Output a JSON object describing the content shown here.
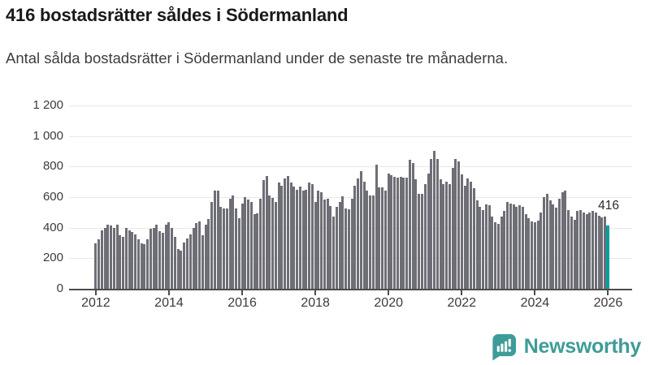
{
  "header": {
    "title": "416 bostadsrätter såldes i Södermanland",
    "subtitle": "Antal sålda bostadsrätter i Södermanland under de senaste tre månaderna."
  },
  "chart_data": {
    "type": "bar",
    "title": "416 bostadsrätter såldes i Södermanland",
    "xlabel": "",
    "ylabel": "",
    "x_start": "2012-01",
    "x_end": "2026-01",
    "x_frequency": "monthly",
    "ylim": [
      0,
      1200
    ],
    "grid": "horizontal",
    "legend": "none",
    "bar_color": "#6e6e76",
    "yticks": [
      {
        "value": 0,
        "label": "0"
      },
      {
        "value": 200,
        "label": "200"
      },
      {
        "value": 400,
        "label": "400"
      },
      {
        "value": 600,
        "label": "600"
      },
      {
        "value": 800,
        "label": "800"
      },
      {
        "value": 1000,
        "label": "1 000"
      },
      {
        "value": 1200,
        "label": "1 200"
      }
    ],
    "xticks": [
      2012,
      2014,
      2016,
      2018,
      2020,
      2022,
      2024,
      2026
    ],
    "x_start_year": 2012,
    "series": [
      {
        "name": "Antal sålda bostadsrätter",
        "values": [
          297,
          322,
          380,
          397,
          418,
          415,
          400,
          418,
          350,
          338,
          400,
          380,
          370,
          355,
          322,
          297,
          294,
          322,
          392,
          400,
          421,
          375,
          367,
          418,
          435,
          397,
          338,
          262,
          250,
          302,
          330,
          358,
          400,
          430,
          440,
          349,
          418,
          457,
          568,
          645,
          640,
          539,
          524,
          528,
          587,
          613,
          524,
          462,
          555,
          602,
          585,
          567,
          489,
          495,
          592,
          710,
          737,
          613,
          593,
          567,
          694,
          674,
          720,
          737,
          694,
          667,
          648,
          667,
          640,
          648,
          694,
          684,
          570,
          645,
          630,
          585,
          590,
          543,
          472,
          535,
          568,
          603,
          528,
          520,
          590,
          675,
          720,
          770,
          700,
          640,
          610,
          610,
          815,
          665,
          665,
          640,
          752,
          745,
          735,
          726,
          735,
          726,
          726,
          842,
          825,
          718,
          620,
          620,
          683,
          752,
          850,
          905,
          850,
          718,
          683,
          700,
          683,
          790,
          850,
          835,
          750,
          675,
          720,
          700,
          657,
          577,
          535,
          515,
          551,
          545,
          471,
          434,
          426,
          471,
          508,
          568,
          560,
          551,
          535,
          545,
          535,
          489,
          462,
          443,
          434,
          445,
          497,
          598,
          621,
          577,
          551,
          533,
          587,
          630,
          645,
          515,
          470,
          454,
          508,
          515,
          497,
          487,
          497,
          508,
          497,
          480,
          465,
          470,
          416
        ]
      }
    ],
    "highlight": {
      "index": 168,
      "value": 416,
      "label": "416",
      "color": "#00a0a0"
    }
  },
  "footer": {
    "logo_text": "Newsworthy",
    "logo_color": "#3e9c98"
  }
}
